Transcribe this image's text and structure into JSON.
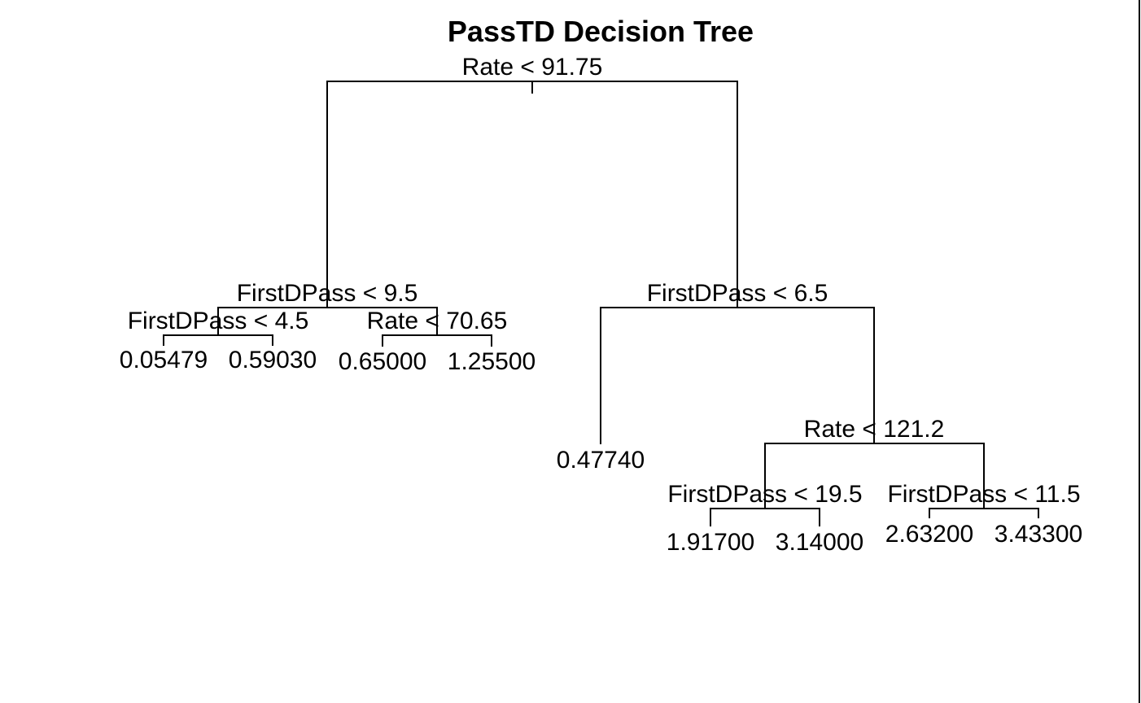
{
  "title": "PassTD Decision Tree",
  "tree": {
    "split": "Rate < 91.75",
    "left": {
      "split": "FirstDPass < 9.5",
      "left": {
        "split": "FirstDPass < 4.5",
        "left": {
          "leaf": "0.05479"
        },
        "right": {
          "leaf": "0.59030"
        }
      },
      "right": {
        "split": "Rate < 70.65",
        "left": {
          "leaf": "0.65000"
        },
        "right": {
          "leaf": "1.25500"
        }
      }
    },
    "right": {
      "split": "FirstDPass < 6.5",
      "left": {
        "leaf": "0.47740"
      },
      "right": {
        "split": "Rate < 121.2",
        "left": {
          "split": "FirstDPass < 19.5",
          "left": {
            "leaf": "1.91700"
          },
          "right": {
            "leaf": "3.14000"
          }
        },
        "right": {
          "split": "FirstDPass < 11.5",
          "left": {
            "leaf": "2.63200"
          },
          "right": {
            "leaf": "3.43300"
          }
        }
      }
    }
  },
  "colors": {
    "line": "#000000",
    "text": "#000000",
    "background": "#ffffff"
  }
}
